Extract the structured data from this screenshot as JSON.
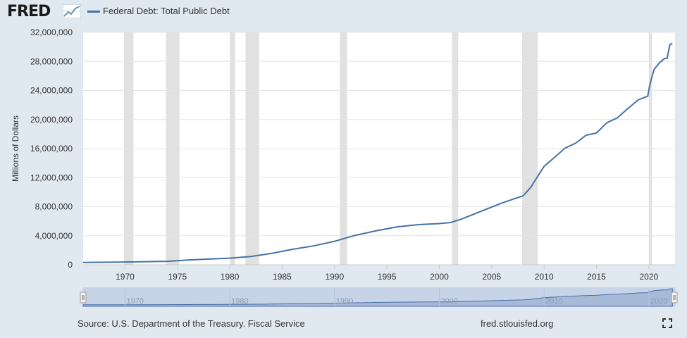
{
  "header": {
    "logo_text": "FRED",
    "logo_icon": "fred-chart-icon",
    "legend_label": "Federal Debt: Total Public Debt"
  },
  "footer": {
    "source": "Source: U.S. Department of the Treasury. Fiscal Service",
    "site": "fred.stlouisfed.org",
    "fullscreen_icon": "fullscreen-icon"
  },
  "colors": {
    "background": "#e1e9f0",
    "plot": "#ffffff",
    "grid": "#e4e4e4",
    "line": "#4572a7",
    "recession": "#e1e1e1",
    "navigator": "#c7d3e6",
    "navigator_line": "#4a6ea8"
  },
  "chart_data": {
    "type": "line",
    "title": "",
    "xlabel": "",
    "ylabel": "Millions of Dollars",
    "xlim": [
      1966,
      2022.5
    ],
    "ylim": [
      0,
      32000000
    ],
    "y_ticks": [
      "0",
      "4,000,000",
      "8,000,000",
      "12,000,000",
      "16,000,000",
      "20,000,000",
      "24,000,000",
      "28,000,000",
      "32,000,000"
    ],
    "x_ticks": [
      "1970",
      "1975",
      "1980",
      "1985",
      "1990",
      "1995",
      "2000",
      "2005",
      "2010",
      "2015",
      "2020"
    ],
    "navigator_ticks": [
      "1970",
      "1980",
      "1990",
      "2000",
      "2010",
      "2020"
    ],
    "grid": true,
    "legend_position": "top-left",
    "recessions": [
      [
        1969.9,
        1970.8
      ],
      [
        1973.9,
        1975.2
      ],
      [
        1980.0,
        1980.5
      ],
      [
        1981.5,
        1982.8
      ],
      [
        1990.5,
        1991.2
      ],
      [
        2001.2,
        2001.8
      ],
      [
        2007.9,
        2009.4
      ],
      [
        2020.0,
        2020.3
      ]
    ],
    "series": [
      {
        "name": "Federal Debt: Total Public Debt",
        "x": [
          1966,
          1970,
          1974,
          1976,
          1978,
          1980,
          1982,
          1984,
          1986,
          1988,
          1990,
          1992,
          1994,
          1996,
          1998,
          2000,
          2001,
          2002,
          2004,
          2006,
          2007,
          2008,
          2008.75,
          2009,
          2010,
          2011,
          2012,
          2013,
          2014,
          2015,
          2016,
          2017,
          2018,
          2019,
          2019.9,
          2020.05,
          2020.3,
          2020.5,
          2021,
          2021.5,
          2021.75,
          2022,
          2022.25
        ],
        "y": [
          320000,
          380000,
          480000,
          650000,
          790000,
          910000,
          1140000,
          1570000,
          2130000,
          2600000,
          3230000,
          4060000,
          4690000,
          5230000,
          5530000,
          5670000,
          5800000,
          6230000,
          7380000,
          8510000,
          9010000,
          9490000,
          10700000,
          11300000,
          13560000,
          14790000,
          16070000,
          16740000,
          17820000,
          18150000,
          19570000,
          20240000,
          21520000,
          22720000,
          23220000,
          24500000,
          25900000,
          26900000,
          27800000,
          28400000,
          28430000,
          30300000,
          30500000
        ]
      }
    ]
  }
}
